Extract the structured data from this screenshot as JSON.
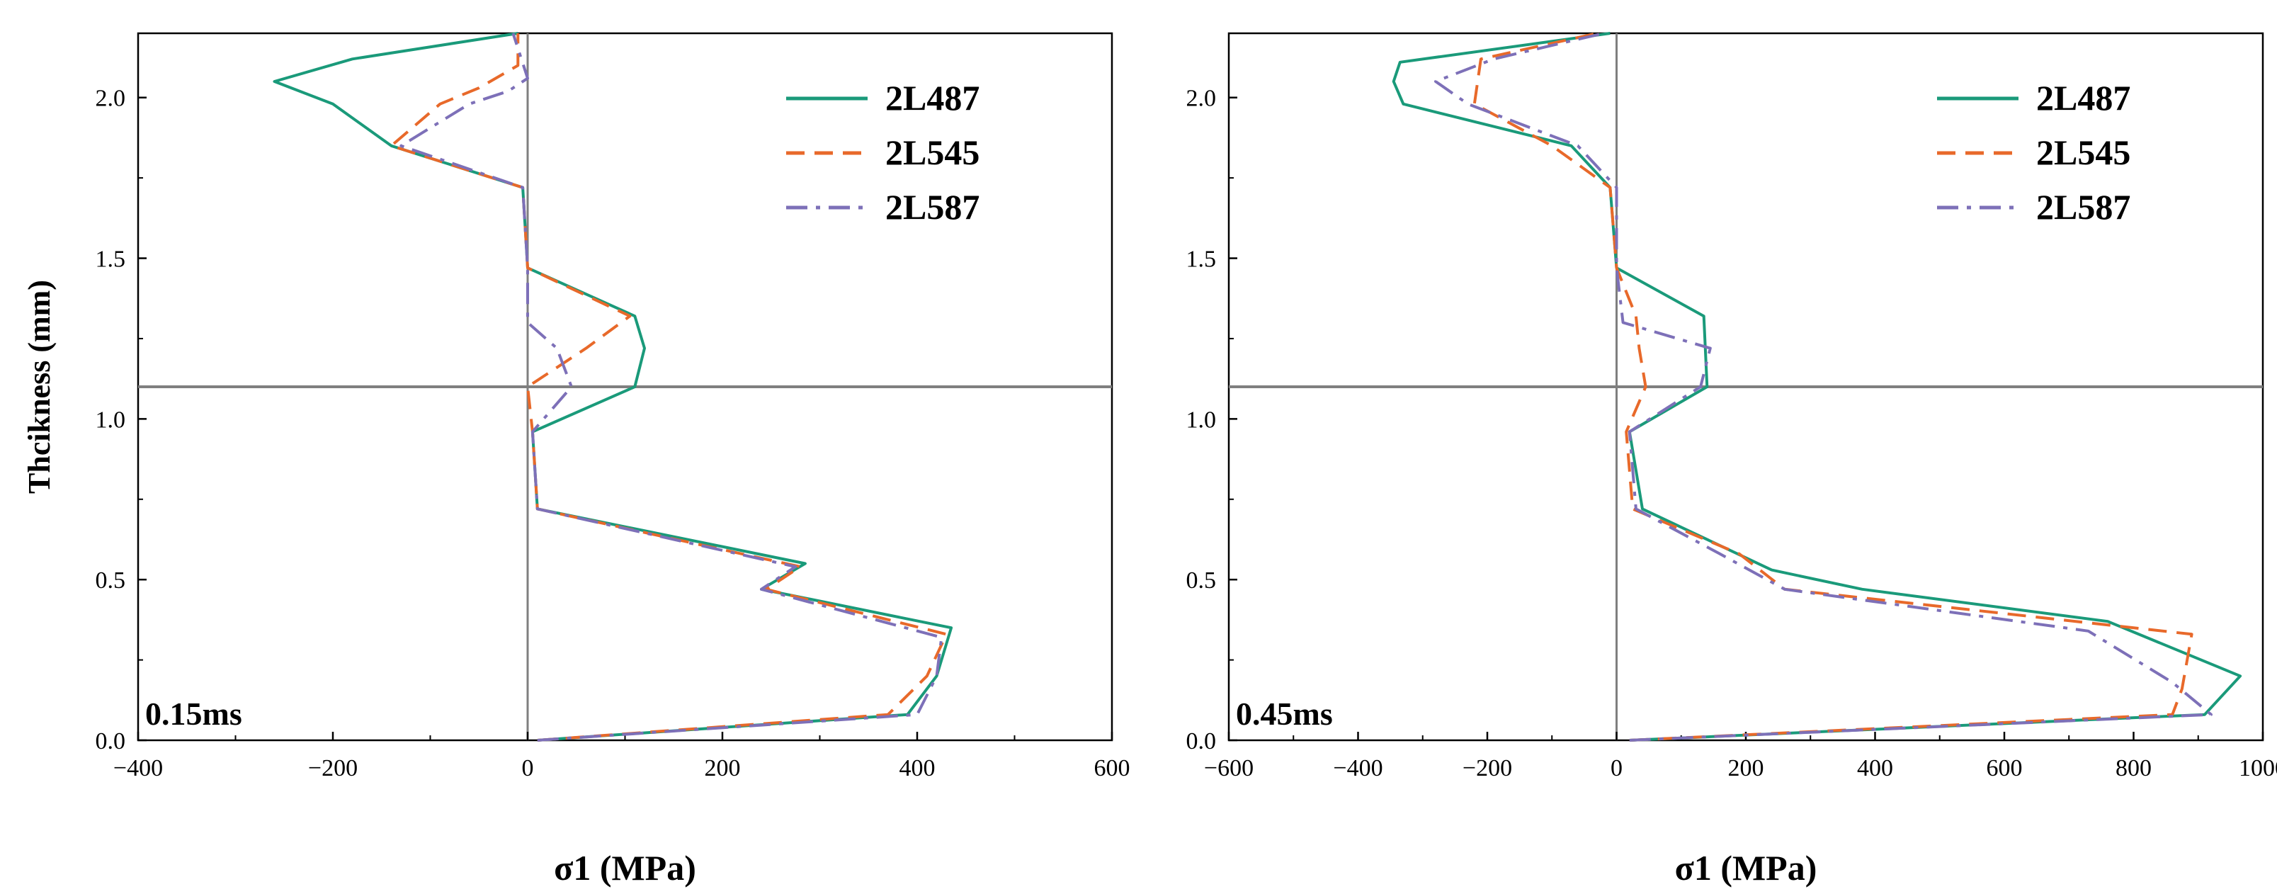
{
  "colors": {
    "2L487": "#1a9a7a",
    "2L545": "#e8692a",
    "2L587": "#7d70b8",
    "refline": "#7f7f7f",
    "axis": "#000000"
  },
  "chart_data": [
    {
      "type": "line",
      "annotation": "0.15ms",
      "xlabel": "σ1 (MPa)",
      "ylabel": "Thcikness (mm)",
      "xlim": [
        -400,
        600
      ],
      "ylim": [
        0,
        2.2
      ],
      "xticks": [
        -400,
        -200,
        0,
        200,
        400,
        600
      ],
      "xtick_labels": [
        "−400",
        "−200",
        "0",
        "200",
        "400",
        "600"
      ],
      "yticks": [
        0,
        0.5,
        1.0,
        1.5,
        2.0
      ],
      "ytick_labels": [
        "0.0",
        "0.5",
        "1.0",
        "1.5",
        "2.0"
      ],
      "reference_lines": {
        "x": 0,
        "y": 1.1
      },
      "legend_position": "top-right",
      "series": [
        {
          "name": "2L487",
          "dash": "solid",
          "points": [
            [
              10,
              0
            ],
            [
              390,
              0.08
            ],
            [
              420,
              0.2
            ],
            [
              435,
              0.35
            ],
            [
              240,
              0.47
            ],
            [
              285,
              0.55
            ],
            [
              10,
              0.72
            ],
            [
              5,
              0.96
            ],
            [
              110,
              1.1
            ],
            [
              120,
              1.22
            ],
            [
              110,
              1.32
            ],
            [
              0,
              1.47
            ],
            [
              -5,
              1.72
            ],
            [
              -140,
              1.85
            ],
            [
              -200,
              1.98
            ],
            [
              -260,
              2.05
            ],
            [
              -180,
              2.12
            ],
            [
              -10,
              2.2
            ]
          ]
        },
        {
          "name": "2L545",
          "dash": "dash",
          "points": [
            [
              10,
              0
            ],
            [
              370,
              0.08
            ],
            [
              410,
              0.2
            ],
            [
              430,
              0.33
            ],
            [
              245,
              0.47
            ],
            [
              280,
              0.54
            ],
            [
              10,
              0.72
            ],
            [
              5,
              0.96
            ],
            [
              0,
              1.1
            ],
            [
              60,
              1.22
            ],
            [
              105,
              1.32
            ],
            [
              0,
              1.47
            ],
            [
              -5,
              1.72
            ],
            [
              -140,
              1.85
            ],
            [
              -90,
              1.98
            ],
            [
              -50,
              2.03
            ],
            [
              -10,
              2.1
            ],
            [
              -10,
              2.2
            ]
          ]
        },
        {
          "name": "2L587",
          "dash": "dashdot",
          "points": [
            [
              10,
              0
            ],
            [
              400,
              0.08
            ],
            [
              420,
              0.2
            ],
            [
              425,
              0.32
            ],
            [
              240,
              0.47
            ],
            [
              275,
              0.54
            ],
            [
              10,
              0.72
            ],
            [
              5,
              0.96
            ],
            [
              45,
              1.1
            ],
            [
              30,
              1.22
            ],
            [
              0,
              1.3
            ],
            [
              0,
              1.47
            ],
            [
              -5,
              1.72
            ],
            [
              -130,
              1.85
            ],
            [
              -60,
              1.98
            ],
            [
              -20,
              2.02
            ],
            [
              0,
              2.06
            ],
            [
              -15,
              2.2
            ]
          ]
        }
      ]
    },
    {
      "type": "line",
      "annotation": "0.45ms",
      "xlabel": "σ1 (MPa)",
      "ylabel": "",
      "xlim": [
        -600,
        1000
      ],
      "ylim": [
        0,
        2.2
      ],
      "xticks": [
        -600,
        -400,
        -200,
        0,
        200,
        400,
        600,
        800,
        1000
      ],
      "xtick_labels": [
        "−600",
        "−400",
        "−200",
        "0",
        "200",
        "400",
        "600",
        "800",
        "1000"
      ],
      "yticks": [
        0,
        0.5,
        1.0,
        1.5,
        2.0
      ],
      "ytick_labels": [
        "0.0",
        "0.5",
        "1.0",
        "1.5",
        "2.0"
      ],
      "reference_lines": {
        "x": 0,
        "y": 1.1
      },
      "legend_position": "top-right",
      "series": [
        {
          "name": "2L487",
          "dash": "solid",
          "points": [
            [
              20,
              0
            ],
            [
              910,
              0.08
            ],
            [
              965,
              0.2
            ],
            [
              760,
              0.37
            ],
            [
              380,
              0.47
            ],
            [
              240,
              0.53
            ],
            [
              40,
              0.72
            ],
            [
              20,
              0.96
            ],
            [
              140,
              1.1
            ],
            [
              135,
              1.32
            ],
            [
              0,
              1.47
            ],
            [
              -10,
              1.72
            ],
            [
              -70,
              1.85
            ],
            [
              -330,
              1.98
            ],
            [
              -345,
              2.05
            ],
            [
              -335,
              2.11
            ],
            [
              -10,
              2.2
            ]
          ]
        },
        {
          "name": "2L545",
          "dash": "dash",
          "points": [
            [
              20,
              0
            ],
            [
              860,
              0.08
            ],
            [
              875,
              0.16
            ],
            [
              890,
              0.33
            ],
            [
              260,
              0.47
            ],
            [
              190,
              0.58
            ],
            [
              25,
              0.72
            ],
            [
              15,
              0.96
            ],
            [
              45,
              1.1
            ],
            [
              35,
              1.22
            ],
            [
              30,
              1.32
            ],
            [
              0,
              1.47
            ],
            [
              -10,
              1.72
            ],
            [
              -100,
              1.85
            ],
            [
              -220,
              1.98
            ],
            [
              -210,
              2.12
            ],
            [
              -30,
              2.2
            ]
          ]
        },
        {
          "name": "2L587",
          "dash": "dashdot",
          "points": [
            [
              20,
              0
            ],
            [
              920,
              0.08
            ],
            [
              860,
              0.18
            ],
            [
              730,
              0.34
            ],
            [
              260,
              0.47
            ],
            [
              160,
              0.58
            ],
            [
              30,
              0.72
            ],
            [
              20,
              0.96
            ],
            [
              130,
              1.1
            ],
            [
              145,
              1.22
            ],
            [
              10,
              1.3
            ],
            [
              0,
              1.47
            ],
            [
              0,
              1.72
            ],
            [
              -60,
              1.85
            ],
            [
              -230,
              1.98
            ],
            [
              -280,
              2.05
            ],
            [
              -190,
              2.12
            ],
            [
              -20,
              2.2
            ]
          ]
        }
      ]
    }
  ]
}
